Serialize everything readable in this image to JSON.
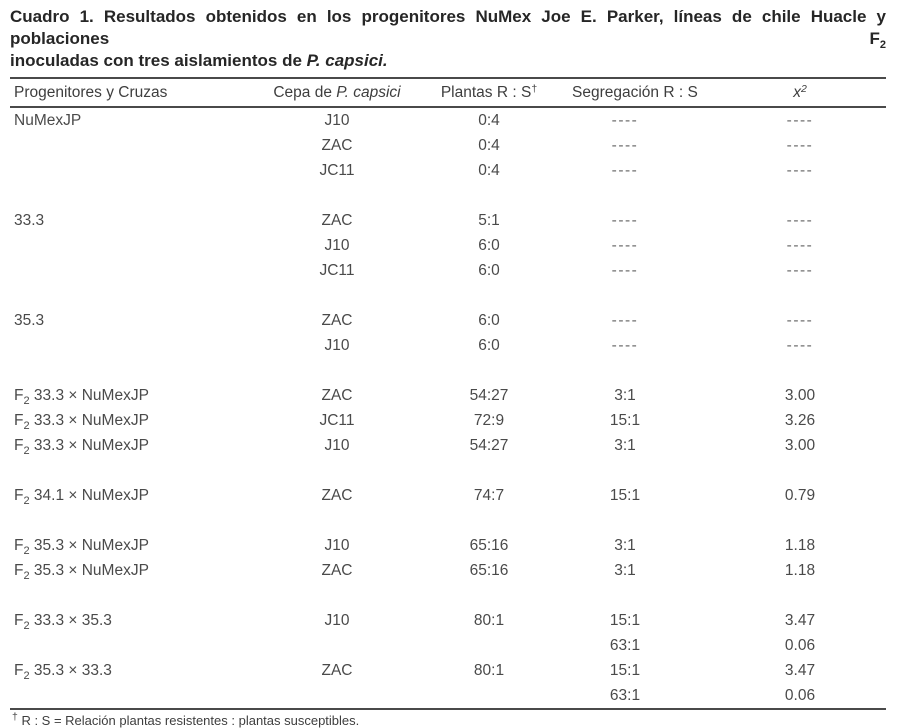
{
  "title": {
    "line1": "Cuadro 1. Resultados obtenidos en los progenitores NuMex Joe E. Parker, líneas de chile Huacle y poblaciones F₂",
    "line2_plain": "inoculadas con tres aislamientos de ",
    "line2_italic": "P. capsici."
  },
  "table": {
    "headers": [
      {
        "plain": "Progenitores y Cruzas",
        "italic": ""
      },
      {
        "plain": "Cepa de ",
        "italic": "P. capsici"
      },
      {
        "plain": "Plantas R : S†",
        "italic": ""
      },
      {
        "plain": "Segregación R : S",
        "italic": ""
      },
      {
        "plain": "",
        "italic": "x²"
      }
    ],
    "groups": [
      {
        "rows": [
          [
            "NuMexJP",
            "J10",
            "0:4",
            "----",
            "----"
          ],
          [
            "",
            "ZAC",
            "0:4",
            "----",
            "----"
          ],
          [
            "",
            "JC11",
            "0:4",
            "----",
            "----"
          ]
        ]
      },
      {
        "rows": [
          [
            "33.3",
            "ZAC",
            "5:1",
            "----",
            "----"
          ],
          [
            "",
            "J10",
            "6:0",
            "----",
            "----"
          ],
          [
            "",
            "JC11",
            "6:0",
            "----",
            "----"
          ]
        ]
      },
      {
        "rows": [
          [
            "35.3",
            "ZAC",
            "6:0",
            "----",
            "----"
          ],
          [
            "",
            "J10",
            "6:0",
            "----",
            "----"
          ]
        ]
      },
      {
        "rows": [
          [
            "F₂ 33.3 × NuMexJP",
            "ZAC",
            "54:27",
            "3:1",
            "3.00"
          ],
          [
            "F₂ 33.3 × NuMexJP",
            "JC11",
            "72:9",
            "15:1",
            "3.26"
          ],
          [
            "F₂ 33.3 × NuMexJP",
            "J10",
            "54:27",
            "3:1",
            "3.00"
          ]
        ]
      },
      {
        "rows": [
          [
            "F₂ 34.1 × NuMexJP",
            "ZAC",
            "74:7",
            "15:1",
            "0.79"
          ]
        ]
      },
      {
        "rows": [
          [
            "F₂ 35.3 × NuMexJP",
            "J10",
            "65:16",
            "3:1",
            "1.18"
          ],
          [
            "F₂ 35.3 × NuMexJP",
            "ZAC",
            "65:16",
            "3:1",
            "1.18"
          ]
        ]
      },
      {
        "rows": [
          [
            "F₂ 33.3 × 35.3",
            "J10",
            "80:1",
            "15:1",
            "3.47"
          ],
          [
            "",
            "",
            "",
            "63:1",
            "0.06"
          ],
          [
            "F₂ 35.3 × 33.3",
            "ZAC",
            "80:1",
            "15:1",
            "3.47"
          ],
          [
            "",
            "",
            "",
            "63:1",
            "0.06"
          ]
        ]
      }
    ]
  },
  "footnote": "† R : S = Relación plantas resistentes : plantas susceptibles.",
  "colors": {
    "text": "#4a4a4a",
    "title_text": "#262626",
    "rule": "#4a4a4a",
    "dash": "#6e6e6e",
    "background": "#ffffff"
  }
}
